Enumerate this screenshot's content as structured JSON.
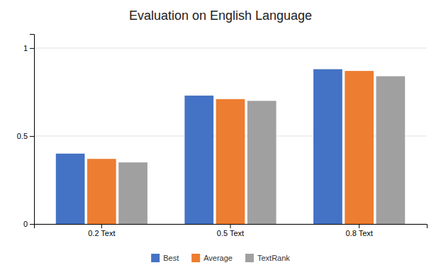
{
  "chart_data": {
    "type": "bar",
    "title": "Evaluation on English Language",
    "categories": [
      "0.2 Text",
      "0.5 Text",
      "0.8 Text"
    ],
    "series": [
      {
        "name": "Best",
        "color": "#4472C4",
        "values": [
          0.4,
          0.73,
          0.88
        ]
      },
      {
        "name": "Average",
        "color": "#ED7D31",
        "values": [
          0.37,
          0.71,
          0.87
        ]
      },
      {
        "name": "TextRank",
        "color": "#A0A0A0",
        "values": [
          0.35,
          0.7,
          0.84
        ]
      }
    ],
    "ylim": [
      0,
      1.08
    ],
    "yticks": [
      0,
      0.5,
      1
    ],
    "grid": true,
    "legend": "bottom"
  }
}
